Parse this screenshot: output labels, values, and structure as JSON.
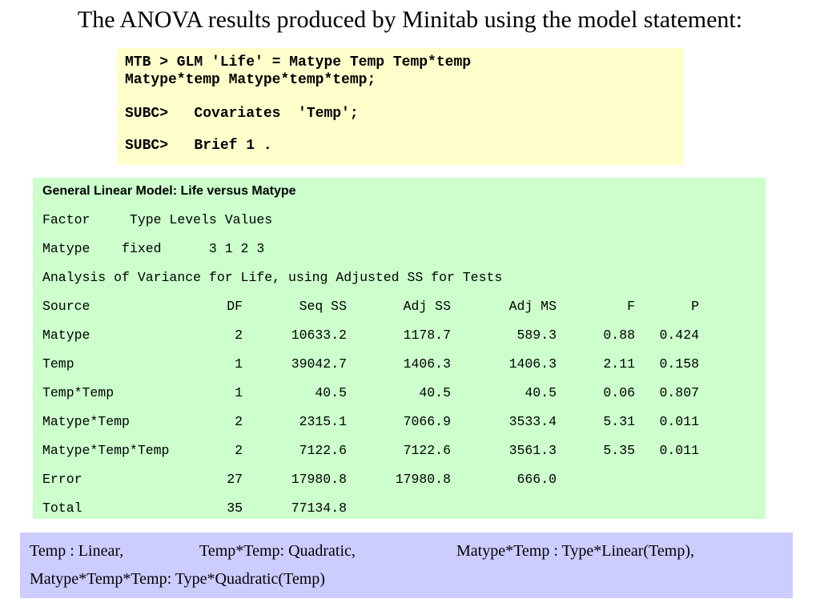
{
  "title": "The ANOVA results produced by Minitab using the model statement:",
  "command": {
    "line1": "MTB > GLM 'Life' = Matype Temp Temp*temp",
    "line2": "Matype*temp Matype*temp*temp;",
    "line3": "SUBC>   Covariates  'Temp';",
    "line4": "SUBC>   Brief 1 ."
  },
  "glm": {
    "heading": "General Linear Model: Life versus Matype",
    "factor_header": "Factor     Type Levels Values",
    "factor_row": "Matype    fixed      3 1 2 3",
    "anova_title": "Analysis of Variance for Life, using Adjusted SS for Tests",
    "columns": {
      "source": "Source",
      "df": "DF",
      "seq_ss": "Seq SS",
      "adj_ss": "Adj SS",
      "adj_ms": "Adj MS",
      "f": "F",
      "p": "P"
    },
    "rows": [
      {
        "source": "Matype",
        "df": "2",
        "seq_ss": "10633.2",
        "adj_ss": "1178.7",
        "adj_ms": "589.3",
        "f": "0.88",
        "p": "0.424"
      },
      {
        "source": "Temp",
        "df": "1",
        "seq_ss": "39042.7",
        "adj_ss": "1406.3",
        "adj_ms": "1406.3",
        "f": "2.11",
        "p": "0.158"
      },
      {
        "source": "Temp*Temp",
        "df": "1",
        "seq_ss": "40.5",
        "adj_ss": "40.5",
        "adj_ms": "40.5",
        "f": "0.06",
        "p": "0.807"
      },
      {
        "source": "Matype*Temp",
        "df": "2",
        "seq_ss": "2315.1",
        "adj_ss": "7066.9",
        "adj_ms": "3533.4",
        "f": "5.31",
        "p": "0.011"
      },
      {
        "source": "Matype*Temp*Temp",
        "df": "2",
        "seq_ss": "7122.6",
        "adj_ss": "7122.6",
        "adj_ms": "3561.3",
        "f": "5.35",
        "p": "0.011"
      },
      {
        "source": "Error",
        "df": "27",
        "seq_ss": "17980.8",
        "adj_ss": "17980.8",
        "adj_ms": "666.0",
        "f": "",
        "p": ""
      },
      {
        "source": "Total",
        "df": "35",
        "seq_ss": "77134.8",
        "adj_ss": "",
        "adj_ms": "",
        "f": "",
        "p": ""
      }
    ]
  },
  "notes": {
    "temp": "Temp : Linear,",
    "temp_temp": "Temp*Temp: Quadratic,",
    "matype_temp": "Matype*Temp : Type*Linear(Temp),",
    "matype_temp_temp": "Matype*Temp*Temp:  Type*Quadratic(Temp)"
  },
  "colors": {
    "command_bg": "#ffffcc",
    "output_bg": "#ccffcc",
    "notes_bg": "#ccccff"
  }
}
